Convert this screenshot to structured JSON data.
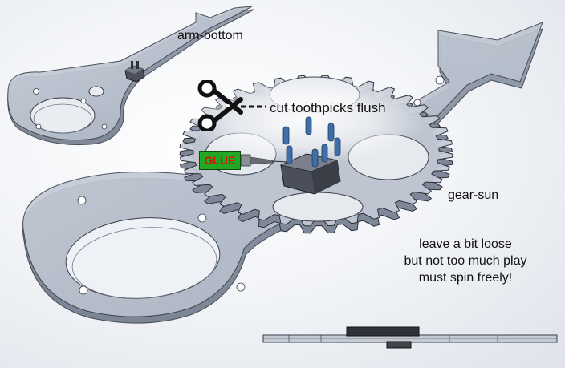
{
  "labels": {
    "arm_bottom": "arm-bottom",
    "cut_note": "cut toothpicks flush",
    "gear_sun": "gear-sun",
    "glue": "GLUE"
  },
  "note_lines": [
    "leave a bit loose",
    "but not too much play",
    "must spin freely!"
  ],
  "icons": {
    "cut": "scissors-icon",
    "glue": "glue-bottle-icon"
  },
  "colors": {
    "part_fill": "#bcc4d2",
    "part_edge": "#3a3f4a",
    "toothpick": "#3e6fa8",
    "glue_label_bg": "#22a822",
    "glue_label_text": "#e01010",
    "background": "#eef1f5"
  }
}
